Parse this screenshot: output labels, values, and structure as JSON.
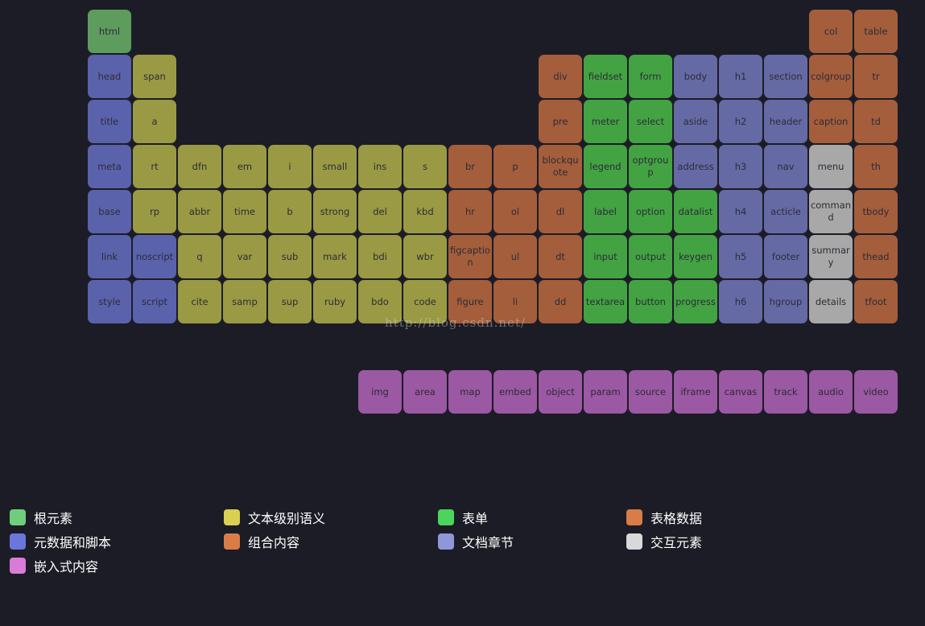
{
  "colors": {
    "root": "#5d9c5d",
    "metadata": "#5a62ac",
    "text": "#9a9a44",
    "grouping": "#a45e3c",
    "forms": "#43a343",
    "sections": "#656aa5",
    "tabular": "#a45e3c",
    "interactive": "#a8a8a8",
    "embedded": "#9b58a3"
  },
  "legend_colors": {
    "root": "#6fce7c",
    "metadata": "#6b76db",
    "text": "#d9cf51",
    "grouping": "#d97c48",
    "forms": "#4cd45b",
    "sections": "#8f97d8",
    "tabular": "#d97c48",
    "interactive": "#d9d9d9",
    "embedded": "#d97cd8"
  },
  "elements": [
    {
      "label": "html",
      "cat": "root",
      "col": 0,
      "row": 0
    },
    {
      "label": "col",
      "cat": "tabular",
      "col": 16,
      "row": 0
    },
    {
      "label": "table",
      "cat": "tabular",
      "col": 17,
      "row": 0
    },
    {
      "label": "head",
      "cat": "metadata",
      "col": 0,
      "row": 1
    },
    {
      "label": "span",
      "cat": "text",
      "col": 1,
      "row": 1
    },
    {
      "label": "div",
      "cat": "grouping",
      "col": 10,
      "row": 1
    },
    {
      "label": "fieldset",
      "cat": "forms",
      "col": 11,
      "row": 1
    },
    {
      "label": "form",
      "cat": "forms",
      "col": 12,
      "row": 1
    },
    {
      "label": "body",
      "cat": "sections",
      "col": 13,
      "row": 1
    },
    {
      "label": "h1",
      "cat": "sections",
      "col": 14,
      "row": 1
    },
    {
      "label": "section",
      "cat": "sections",
      "col": 15,
      "row": 1
    },
    {
      "label": "colgroup",
      "cat": "tabular",
      "col": 16,
      "row": 1
    },
    {
      "label": "tr",
      "cat": "tabular",
      "col": 17,
      "row": 1
    },
    {
      "label": "title",
      "cat": "metadata",
      "col": 0,
      "row": 2
    },
    {
      "label": "a",
      "cat": "text",
      "col": 1,
      "row": 2
    },
    {
      "label": "pre",
      "cat": "grouping",
      "col": 10,
      "row": 2
    },
    {
      "label": "meter",
      "cat": "forms",
      "col": 11,
      "row": 2
    },
    {
      "label": "select",
      "cat": "forms",
      "col": 12,
      "row": 2
    },
    {
      "label": "aside",
      "cat": "sections",
      "col": 13,
      "row": 2
    },
    {
      "label": "h2",
      "cat": "sections",
      "col": 14,
      "row": 2
    },
    {
      "label": "header",
      "cat": "sections",
      "col": 15,
      "row": 2
    },
    {
      "label": "caption",
      "cat": "tabular",
      "col": 16,
      "row": 2
    },
    {
      "label": "td",
      "cat": "tabular",
      "col": 17,
      "row": 2
    },
    {
      "label": "meta",
      "cat": "metadata",
      "col": 0,
      "row": 3
    },
    {
      "label": "rt",
      "cat": "text",
      "col": 1,
      "row": 3
    },
    {
      "label": "dfn",
      "cat": "text",
      "col": 2,
      "row": 3
    },
    {
      "label": "em",
      "cat": "text",
      "col": 3,
      "row": 3
    },
    {
      "label": "i",
      "cat": "text",
      "col": 4,
      "row": 3
    },
    {
      "label": "small",
      "cat": "text",
      "col": 5,
      "row": 3
    },
    {
      "label": "ins",
      "cat": "text",
      "col": 6,
      "row": 3
    },
    {
      "label": "s",
      "cat": "text",
      "col": 7,
      "row": 3
    },
    {
      "label": "br",
      "cat": "grouping",
      "col": 8,
      "row": 3
    },
    {
      "label": "p",
      "cat": "grouping",
      "col": 9,
      "row": 3
    },
    {
      "label": "blockquote",
      "cat": "grouping",
      "col": 10,
      "row": 3
    },
    {
      "label": "legend",
      "cat": "forms",
      "col": 11,
      "row": 3
    },
    {
      "label": "optgroup",
      "cat": "forms",
      "col": 12,
      "row": 3
    },
    {
      "label": "address",
      "cat": "sections",
      "col": 13,
      "row": 3
    },
    {
      "label": "h3",
      "cat": "sections",
      "col": 14,
      "row": 3
    },
    {
      "label": "nav",
      "cat": "sections",
      "col": 15,
      "row": 3
    },
    {
      "label": "menu",
      "cat": "interactive",
      "col": 16,
      "row": 3
    },
    {
      "label": "th",
      "cat": "tabular",
      "col": 17,
      "row": 3
    },
    {
      "label": "base",
      "cat": "metadata",
      "col": 0,
      "row": 4
    },
    {
      "label": "rp",
      "cat": "text",
      "col": 1,
      "row": 4
    },
    {
      "label": "abbr",
      "cat": "text",
      "col": 2,
      "row": 4
    },
    {
      "label": "time",
      "cat": "text",
      "col": 3,
      "row": 4
    },
    {
      "label": "b",
      "cat": "text",
      "col": 4,
      "row": 4
    },
    {
      "label": "strong",
      "cat": "text",
      "col": 5,
      "row": 4
    },
    {
      "label": "del",
      "cat": "text",
      "col": 6,
      "row": 4
    },
    {
      "label": "kbd",
      "cat": "text",
      "col": 7,
      "row": 4
    },
    {
      "label": "hr",
      "cat": "grouping",
      "col": 8,
      "row": 4
    },
    {
      "label": "ol",
      "cat": "grouping",
      "col": 9,
      "row": 4
    },
    {
      "label": "dl",
      "cat": "grouping",
      "col": 10,
      "row": 4
    },
    {
      "label": "label",
      "cat": "forms",
      "col": 11,
      "row": 4
    },
    {
      "label": "option",
      "cat": "forms",
      "col": 12,
      "row": 4
    },
    {
      "label": "datalist",
      "cat": "forms",
      "col": 13,
      "row": 4
    },
    {
      "label": "h4",
      "cat": "sections",
      "col": 14,
      "row": 4
    },
    {
      "label": "acticle",
      "cat": "sections",
      "col": 15,
      "row": 4
    },
    {
      "label": "command",
      "cat": "interactive",
      "col": 16,
      "row": 4
    },
    {
      "label": "tbody",
      "cat": "tabular",
      "col": 17,
      "row": 4
    },
    {
      "label": "link",
      "cat": "metadata",
      "col": 0,
      "row": 5
    },
    {
      "label": "noscript",
      "cat": "metadata",
      "col": 1,
      "row": 5
    },
    {
      "label": "q",
      "cat": "text",
      "col": 2,
      "row": 5
    },
    {
      "label": "var",
      "cat": "text",
      "col": 3,
      "row": 5
    },
    {
      "label": "sub",
      "cat": "text",
      "col": 4,
      "row": 5
    },
    {
      "label": "mark",
      "cat": "text",
      "col": 5,
      "row": 5
    },
    {
      "label": "bdi",
      "cat": "text",
      "col": 6,
      "row": 5
    },
    {
      "label": "wbr",
      "cat": "text",
      "col": 7,
      "row": 5
    },
    {
      "label": "figcaption",
      "cat": "grouping",
      "col": 8,
      "row": 5
    },
    {
      "label": "ul",
      "cat": "grouping",
      "col": 9,
      "row": 5
    },
    {
      "label": "dt",
      "cat": "grouping",
      "col": 10,
      "row": 5
    },
    {
      "label": "input",
      "cat": "forms",
      "col": 11,
      "row": 5
    },
    {
      "label": "output",
      "cat": "forms",
      "col": 12,
      "row": 5
    },
    {
      "label": "keygen",
      "cat": "forms",
      "col": 13,
      "row": 5
    },
    {
      "label": "h5",
      "cat": "sections",
      "col": 14,
      "row": 5
    },
    {
      "label": "footer",
      "cat": "sections",
      "col": 15,
      "row": 5
    },
    {
      "label": "summary",
      "cat": "interactive",
      "col": 16,
      "row": 5
    },
    {
      "label": "thead",
      "cat": "tabular",
      "col": 17,
      "row": 5
    },
    {
      "label": "style",
      "cat": "metadata",
      "col": 0,
      "row": 6
    },
    {
      "label": "script",
      "cat": "metadata",
      "col": 1,
      "row": 6
    },
    {
      "label": "cite",
      "cat": "text",
      "col": 2,
      "row": 6
    },
    {
      "label": "samp",
      "cat": "text",
      "col": 3,
      "row": 6
    },
    {
      "label": "sup",
      "cat": "text",
      "col": 4,
      "row": 6
    },
    {
      "label": "ruby",
      "cat": "text",
      "col": 5,
      "row": 6
    },
    {
      "label": "bdo",
      "cat": "text",
      "col": 6,
      "row": 6
    },
    {
      "label": "code",
      "cat": "text",
      "col": 7,
      "row": 6
    },
    {
      "label": "figure",
      "cat": "grouping",
      "col": 8,
      "row": 6
    },
    {
      "label": "li",
      "cat": "grouping",
      "col": 9,
      "row": 6
    },
    {
      "label": "dd",
      "cat": "grouping",
      "col": 10,
      "row": 6
    },
    {
      "label": "textarea",
      "cat": "forms",
      "col": 11,
      "row": 6
    },
    {
      "label": "button",
      "cat": "forms",
      "col": 12,
      "row": 6
    },
    {
      "label": "progress",
      "cat": "forms",
      "col": 13,
      "row": 6
    },
    {
      "label": "h6",
      "cat": "sections",
      "col": 14,
      "row": 6
    },
    {
      "label": "hgroup",
      "cat": "sections",
      "col": 15,
      "row": 6
    },
    {
      "label": "details",
      "cat": "interactive",
      "col": 16,
      "row": 6
    },
    {
      "label": "tfoot",
      "cat": "tabular",
      "col": 17,
      "row": 6
    },
    {
      "label": "img",
      "cat": "embedded",
      "col": 6,
      "row": 8
    },
    {
      "label": "area",
      "cat": "embedded",
      "col": 7,
      "row": 8
    },
    {
      "label": "map",
      "cat": "embedded",
      "col": 8,
      "row": 8
    },
    {
      "label": "embed",
      "cat": "embedded",
      "col": 9,
      "row": 8
    },
    {
      "label": "object",
      "cat": "embedded",
      "col": 10,
      "row": 8
    },
    {
      "label": "param",
      "cat": "embedded",
      "col": 11,
      "row": 8
    },
    {
      "label": "source",
      "cat": "embedded",
      "col": 12,
      "row": 8
    },
    {
      "label": "iframe",
      "cat": "embedded",
      "col": 13,
      "row": 8
    },
    {
      "label": "canvas",
      "cat": "embedded",
      "col": 14,
      "row": 8
    },
    {
      "label": "track",
      "cat": "embedded",
      "col": 15,
      "row": 8
    },
    {
      "label": "audio",
      "cat": "embedded",
      "col": 16,
      "row": 8
    },
    {
      "label": "video",
      "cat": "embedded",
      "col": 17,
      "row": 8
    }
  ],
  "watermark": "http://blog.csdn.net/",
  "legend": [
    {
      "label": "根元素",
      "cat": "root"
    },
    {
      "label": "文本级别语义",
      "cat": "text"
    },
    {
      "label": "表单",
      "cat": "forms"
    },
    {
      "label": "表格数据",
      "cat": "tabular"
    },
    {
      "label": "元数据和脚本",
      "cat": "metadata"
    },
    {
      "label": "组合内容",
      "cat": "grouping"
    },
    {
      "label": "文档章节",
      "cat": "sections"
    },
    {
      "label": "交互元素",
      "cat": "interactive"
    },
    {
      "label": "嵌入式内容",
      "cat": "embedded"
    }
  ]
}
